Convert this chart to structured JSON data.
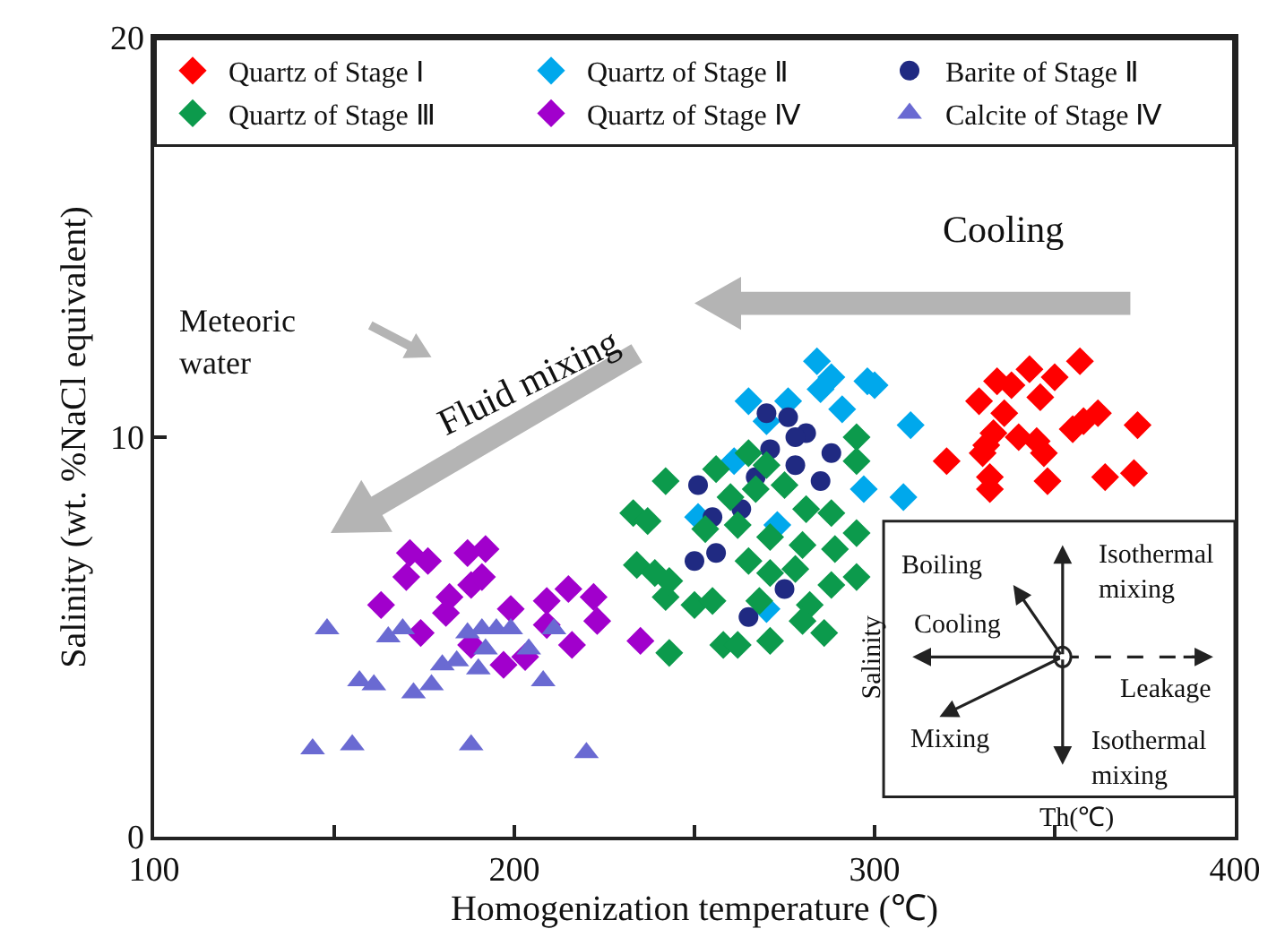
{
  "chart_data": {
    "type": "scatter",
    "xlabel": "Homogenization temperature (℃)",
    "ylabel": "Salinity (wt. %NaCl equivalent)",
    "xlim": [
      100,
      400
    ],
    "xticks": [
      100,
      {
        "value": 150,
        "label": null
      },
      200,
      {
        "value": 250,
        "label": null
      },
      300,
      {
        "value": 350,
        "label": null
      },
      400
    ],
    "ylim": [
      0,
      20
    ],
    "yticks": [
      0,
      10,
      20
    ],
    "legend": "top",
    "series": [
      {
        "name": "Quartz of Stage Ⅰ",
        "color": "#ff0000",
        "marker": "diamond",
        "x": [
          357,
          343,
          350,
          334,
          338,
          346,
          329,
          336,
          362,
          358,
          355,
          373,
          333,
          340,
          345,
          331,
          347,
          320,
          330,
          332,
          332,
          348,
          364,
          372
        ],
        "values": [
          11.9,
          11.7,
          11.5,
          11.4,
          11.3,
          11.0,
          10.9,
          10.6,
          10.6,
          10.4,
          10.2,
          10.3,
          10.1,
          10.0,
          9.9,
          9.8,
          9.6,
          9.4,
          9.6,
          9.0,
          8.7,
          8.9,
          9.0,
          9.1
        ]
      },
      {
        "name": "Quartz of Stage Ⅱ",
        "color": "#00a8ec",
        "marker": "diamond",
        "x": [
          298,
          288,
          285,
          291,
          265,
          270,
          261,
          297,
          273,
          251,
          270,
          300,
          310,
          308,
          284,
          276
        ],
        "values": [
          11.4,
          11.5,
          11.2,
          10.7,
          10.9,
          10.4,
          9.4,
          8.7,
          7.8,
          8.0,
          5.7,
          11.3,
          10.3,
          8.5,
          11.9,
          10.9
        ]
      },
      {
        "name": "Barite of Stage Ⅱ",
        "color": "#202a82",
        "marker": "circle",
        "x": [
          270,
          276,
          281,
          278,
          288,
          271,
          278,
          285,
          267,
          251,
          255,
          263,
          250,
          256,
          275,
          265
        ],
        "values": [
          10.6,
          10.5,
          10.1,
          10.0,
          9.6,
          9.7,
          9.3,
          8.9,
          9.0,
          8.8,
          8.0,
          8.2,
          6.9,
          7.1,
          6.2,
          5.5
        ]
      },
      {
        "name": "Quartz of Stage Ⅲ",
        "color": "#0c9a4c",
        "marker": "diamond",
        "x": [
          242,
          233,
          237,
          256,
          265,
          270,
          295,
          295,
          260,
          267,
          275,
          281,
          288,
          295,
          253,
          262,
          271,
          280,
          289,
          234,
          239,
          242,
          265,
          271,
          278,
          288,
          295,
          250,
          255,
          268,
          282,
          280,
          258,
          262,
          271,
          286,
          243,
          243
        ],
        "values": [
          8.9,
          8.1,
          7.9,
          9.2,
          9.6,
          9.3,
          10.0,
          9.4,
          8.5,
          8.7,
          8.8,
          8.2,
          8.1,
          7.6,
          7.7,
          7.8,
          7.5,
          7.3,
          7.2,
          6.8,
          6.6,
          6.0,
          6.9,
          6.6,
          6.7,
          6.3,
          6.5,
          5.8,
          5.9,
          5.9,
          5.8,
          5.4,
          4.8,
          4.8,
          4.9,
          5.1,
          4.6,
          6.4
        ]
      },
      {
        "name": "Quartz of Stage Ⅳ",
        "color": "#a100cc",
        "marker": "diamond",
        "x": [
          171,
          176,
          170,
          187,
          192,
          188,
          191,
          163,
          182,
          181,
          199,
          209,
          215,
          222,
          223,
          209,
          174,
          188,
          203,
          197,
          216,
          235
        ],
        "values": [
          7.1,
          6.9,
          6.5,
          7.1,
          7.2,
          6.3,
          6.5,
          5.8,
          6.0,
          5.6,
          5.7,
          5.9,
          6.2,
          6.0,
          5.4,
          5.3,
          5.1,
          4.8,
          4.5,
          4.3,
          4.8,
          4.9
        ]
      },
      {
        "name": "Calcite of Stage Ⅳ",
        "color": "#6a6ad2",
        "marker": "triangle",
        "x": [
          148,
          165,
          169,
          157,
          161,
          172,
          177,
          180,
          184,
          190,
          187,
          191,
          195,
          199,
          192,
          204,
          211,
          208,
          144,
          155,
          188,
          220
        ],
        "values": [
          5.2,
          5.0,
          5.2,
          3.9,
          3.8,
          3.6,
          3.8,
          4.3,
          4.4,
          4.2,
          5.1,
          5.2,
          5.2,
          5.2,
          4.7,
          4.7,
          5.2,
          3.9,
          2.2,
          2.3,
          2.3,
          2.1
        ]
      }
    ],
    "annotations": [
      "Cooling",
      "Fluid mixing",
      "Meteoric\nwater",
      "Boiling",
      "Isothermal\nmixing",
      "Cooling",
      "Leakage",
      "Mixing",
      "Isothermal\nmixing",
      "Salinity",
      "Th(℃)"
    ]
  }
}
